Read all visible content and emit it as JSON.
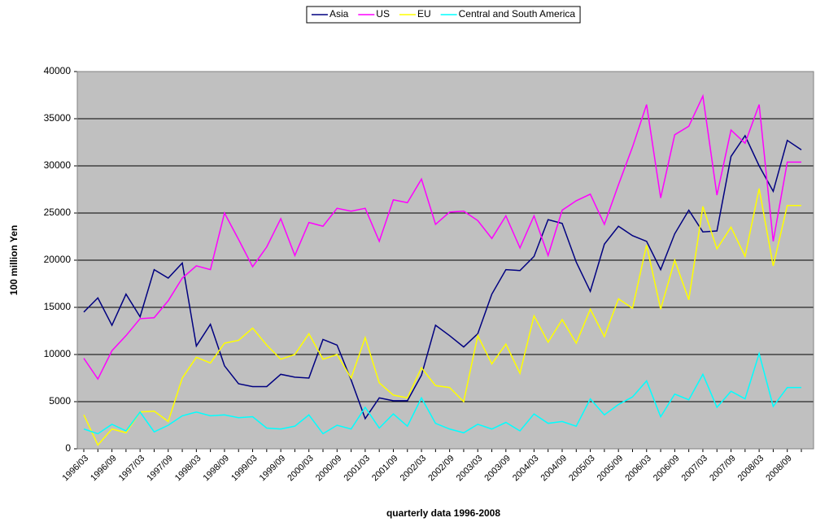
{
  "chart_data": {
    "type": "line",
    "x_label": "quarterly data 1996-2008",
    "y_label": "100 million Yen",
    "categories": [
      "1996/03",
      null,
      "1996/09",
      null,
      "1997/03",
      null,
      "1997/09",
      null,
      "1998/03",
      null,
      "1998/09",
      null,
      "1999/03",
      null,
      "1999/09",
      null,
      "2000/03",
      null,
      "2000/09",
      null,
      "2001/03",
      null,
      "2001/09",
      null,
      "2002/03",
      null,
      "2002/09",
      null,
      "2003/03",
      null,
      "2003/09",
      null,
      "2004/03",
      null,
      "2004/09",
      null,
      "2005/03",
      null,
      "2005/09",
      null,
      "2006/03",
      null,
      "2006/09",
      null,
      "2007/03",
      null,
      "2007/09",
      null,
      "2008/03",
      null,
      "2008/09",
      null
    ],
    "series": [
      {
        "name": "Asia",
        "color": "#000080",
        "values": [
          14500,
          16000,
          13100,
          16400,
          14000,
          19000,
          18100,
          19700,
          10900,
          13200,
          8800,
          6900,
          6600,
          6600,
          7900,
          7600,
          7500,
          11600,
          11000,
          7300,
          3200,
          5400,
          5100,
          5100,
          7800,
          13100,
          12000,
          10800,
          12200,
          16400,
          19000,
          18900,
          20400,
          24300,
          23900,
          19800,
          16700,
          21700,
          23600,
          22600,
          22000,
          19000,
          22800,
          25300,
          23000,
          23100,
          31000,
          33200,
          30000,
          27300,
          32700,
          31700
        ]
      },
      {
        "name": "US",
        "color": "#ff00ff",
        "values": [
          9600,
          7400,
          10400,
          12000,
          13800,
          13900,
          15700,
          18100,
          19400,
          19000,
          25000,
          22200,
          19300,
          21400,
          24400,
          20500,
          24000,
          23600,
          25500,
          25200,
          25500,
          22000,
          26400,
          26100,
          28600,
          23800,
          25100,
          25200,
          24200,
          22300,
          24700,
          21300,
          24700,
          20500,
          25300,
          26300,
          27000,
          23800,
          28000,
          32000,
          36500,
          26600,
          33300,
          34200,
          37400,
          26900,
          33800,
          32400,
          36500,
          22000,
          30400,
          30400
        ]
      },
      {
        "name": "EU",
        "color": "#ffff00",
        "values": [
          3600,
          400,
          2100,
          1700,
          3900,
          4000,
          2900,
          7500,
          9700,
          9100,
          11200,
          11500,
          12800,
          11000,
          9500,
          10000,
          12200,
          9500,
          10000,
          7500,
          11800,
          7000,
          5700,
          5400,
          8600,
          6700,
          6500,
          5000,
          12000,
          9000,
          11100,
          8000,
          14100,
          11300,
          13700,
          11200,
          14800,
          11900,
          15900,
          14900,
          21600,
          14800,
          20000,
          15800,
          25700,
          21200,
          23500,
          20400,
          27600,
          19400,
          25800,
          25800
        ]
      },
      {
        "name": "Central and South America",
        "color": "#00ffff",
        "values": [
          2100,
          1600,
          2600,
          1900,
          3900,
          1800,
          2500,
          3500,
          3900,
          3500,
          3600,
          3300,
          3400,
          2200,
          2100,
          2400,
          3600,
          1600,
          2500,
          2100,
          4400,
          2200,
          3700,
          2400,
          5400,
          2700,
          2100,
          1700,
          2600,
          2100,
          2800,
          1900,
          3700,
          2700,
          2900,
          2400,
          5300,
          3600,
          4700,
          5500,
          7200,
          3400,
          5800,
          5200,
          7900,
          4400,
          6100,
          5300,
          10100,
          4500,
          6500,
          6500
        ]
      }
    ],
    "ylim": [
      0,
      40000
    ],
    "yticks": [
      0,
      5000,
      10000,
      15000,
      20000,
      25000,
      30000,
      35000,
      40000
    ],
    "grid": true,
    "legend": "top"
  }
}
